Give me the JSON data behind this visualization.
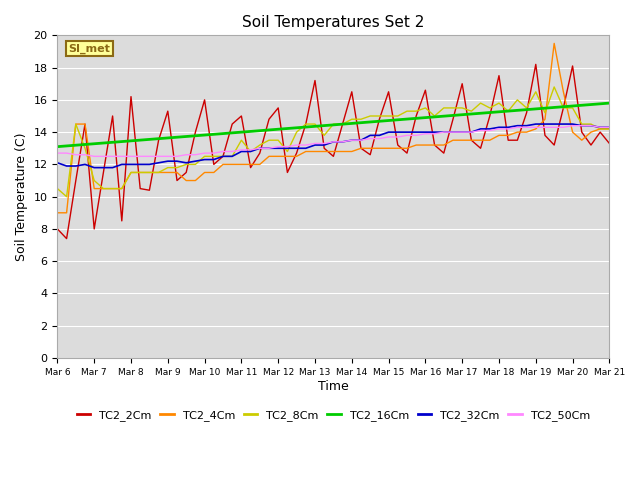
{
  "title": "Soil Temperatures Set 2",
  "xlabel": "Time",
  "ylabel": "Soil Temperature (C)",
  "ylim": [
    0,
    20
  ],
  "xlim": [
    0,
    360
  ],
  "bg_color": "#dcdcdc",
  "annotation_text": "SI_met",
  "annotation_bg": "#ffff99",
  "annotation_border": "#8b6914",
  "series": {
    "TC2_2Cm": {
      "color": "#cc0000",
      "linewidth": 1.0,
      "x": [
        0,
        6,
        12,
        18,
        24,
        30,
        36,
        42,
        48,
        54,
        60,
        66,
        72,
        78,
        84,
        90,
        96,
        102,
        108,
        114,
        120,
        126,
        132,
        138,
        144,
        150,
        156,
        162,
        168,
        174,
        180,
        186,
        192,
        198,
        204,
        210,
        216,
        222,
        228,
        234,
        240,
        246,
        252,
        258,
        264,
        270,
        276,
        282,
        288,
        294,
        300,
        306,
        312,
        318,
        324,
        330,
        336,
        342,
        348,
        354,
        360
      ],
      "y": [
        8.0,
        7.4,
        11.0,
        14.5,
        8.0,
        11.5,
        15.0,
        8.5,
        16.2,
        10.5,
        10.4,
        13.5,
        15.3,
        11.0,
        11.5,
        14.0,
        16.0,
        12.0,
        12.5,
        14.5,
        15.0,
        11.8,
        12.7,
        14.8,
        15.5,
        11.5,
        12.7,
        14.5,
        17.2,
        13.0,
        12.5,
        14.5,
        16.5,
        13.0,
        12.6,
        14.8,
        16.5,
        13.2,
        12.7,
        15.0,
        16.6,
        13.2,
        12.7,
        14.8,
        17.0,
        13.5,
        13.0,
        15.0,
        17.5,
        13.5,
        13.5,
        15.2,
        18.2,
        13.8,
        13.2,
        15.5,
        18.1,
        14.0,
        13.2,
        14.0,
        13.3
      ]
    },
    "TC2_4Cm": {
      "color": "#ff8800",
      "linewidth": 1.0,
      "x": [
        0,
        6,
        12,
        18,
        24,
        30,
        36,
        42,
        48,
        54,
        60,
        66,
        72,
        78,
        84,
        90,
        96,
        102,
        108,
        114,
        120,
        126,
        132,
        138,
        144,
        150,
        156,
        162,
        168,
        174,
        180,
        186,
        192,
        198,
        204,
        210,
        216,
        222,
        228,
        234,
        240,
        246,
        252,
        258,
        264,
        270,
        276,
        282,
        288,
        294,
        300,
        306,
        312,
        318,
        324,
        330,
        336,
        342,
        348,
        354,
        360
      ],
      "y": [
        9.0,
        9.0,
        14.5,
        14.5,
        10.5,
        10.5,
        10.5,
        10.5,
        11.5,
        11.5,
        11.5,
        11.5,
        11.5,
        11.5,
        11.0,
        11.0,
        11.5,
        11.5,
        12.0,
        12.0,
        12.0,
        12.0,
        12.0,
        12.5,
        12.5,
        12.5,
        12.5,
        12.8,
        12.8,
        12.8,
        12.8,
        12.8,
        12.8,
        13.0,
        13.0,
        13.0,
        13.0,
        13.0,
        13.0,
        13.2,
        13.2,
        13.2,
        13.2,
        13.5,
        13.5,
        13.5,
        13.5,
        13.5,
        13.8,
        13.8,
        14.0,
        14.0,
        14.2,
        14.8,
        19.5,
        16.5,
        14.0,
        13.5,
        14.0,
        14.2,
        14.2
      ]
    },
    "TC2_8Cm": {
      "color": "#cccc00",
      "linewidth": 1.0,
      "x": [
        0,
        6,
        12,
        18,
        24,
        30,
        36,
        42,
        48,
        54,
        60,
        66,
        72,
        78,
        84,
        90,
        96,
        102,
        108,
        114,
        120,
        126,
        132,
        138,
        144,
        150,
        156,
        162,
        168,
        174,
        180,
        186,
        192,
        198,
        204,
        210,
        216,
        222,
        228,
        234,
        240,
        246,
        252,
        258,
        264,
        270,
        276,
        282,
        288,
        294,
        300,
        306,
        312,
        318,
        324,
        330,
        336,
        342,
        348,
        354,
        360
      ],
      "y": [
        10.5,
        10.0,
        14.5,
        13.0,
        11.0,
        10.5,
        10.5,
        10.5,
        11.5,
        11.5,
        11.5,
        11.5,
        11.8,
        11.8,
        12.0,
        12.0,
        12.5,
        12.5,
        12.5,
        12.5,
        13.5,
        12.8,
        13.2,
        13.5,
        13.5,
        12.8,
        14.0,
        14.5,
        14.5,
        13.8,
        14.5,
        14.5,
        14.8,
        14.8,
        15.0,
        15.0,
        15.0,
        15.0,
        15.3,
        15.3,
        15.5,
        15.0,
        15.5,
        15.5,
        15.5,
        15.3,
        15.8,
        15.5,
        15.8,
        15.3,
        16.0,
        15.5,
        16.5,
        15.2,
        16.8,
        15.5,
        15.5,
        14.5,
        14.5,
        14.2,
        14.2
      ]
    },
    "TC2_16Cm": {
      "color": "#00cc00",
      "linewidth": 2.0,
      "x": [
        0,
        360
      ],
      "y": [
        13.1,
        15.8
      ]
    },
    "TC2_32Cm": {
      "color": "#0000cc",
      "linewidth": 1.2,
      "x": [
        0,
        6,
        12,
        18,
        24,
        30,
        36,
        42,
        48,
        54,
        60,
        66,
        72,
        78,
        84,
        90,
        96,
        102,
        108,
        114,
        120,
        126,
        132,
        138,
        144,
        150,
        156,
        162,
        168,
        174,
        180,
        186,
        192,
        198,
        204,
        210,
        216,
        222,
        228,
        234,
        240,
        246,
        252,
        258,
        264,
        270,
        276,
        282,
        288,
        294,
        300,
        306,
        312,
        318,
        324,
        330,
        336,
        342,
        348,
        354,
        360
      ],
      "y": [
        12.1,
        11.9,
        11.9,
        12.0,
        11.8,
        11.8,
        11.8,
        12.0,
        12.0,
        12.0,
        12.0,
        12.1,
        12.2,
        12.2,
        12.1,
        12.2,
        12.3,
        12.3,
        12.5,
        12.5,
        12.8,
        12.8,
        13.0,
        13.0,
        13.0,
        13.0,
        13.0,
        13.0,
        13.2,
        13.2,
        13.4,
        13.4,
        13.5,
        13.5,
        13.8,
        13.8,
        14.0,
        14.0,
        14.0,
        14.0,
        14.0,
        14.0,
        14.0,
        14.0,
        14.0,
        14.0,
        14.2,
        14.2,
        14.3,
        14.3,
        14.4,
        14.4,
        14.5,
        14.5,
        14.5,
        14.5,
        14.5,
        14.4,
        14.4,
        14.3,
        14.3
      ]
    },
    "TC2_50Cm": {
      "color": "#ff88ff",
      "linewidth": 1.0,
      "x": [
        0,
        6,
        12,
        18,
        24,
        30,
        36,
        42,
        48,
        54,
        60,
        66,
        72,
        78,
        84,
        90,
        96,
        102,
        108,
        114,
        120,
        126,
        132,
        138,
        144,
        150,
        156,
        162,
        168,
        174,
        180,
        186,
        192,
        198,
        204,
        210,
        216,
        222,
        228,
        234,
        240,
        246,
        252,
        258,
        264,
        270,
        276,
        282,
        288,
        294,
        300,
        306,
        312,
        318,
        324,
        330,
        336,
        342,
        348,
        354,
        360
      ],
      "y": [
        12.7,
        12.7,
        12.6,
        12.6,
        12.5,
        12.5,
        12.5,
        12.5,
        12.5,
        12.5,
        12.5,
        12.5,
        12.5,
        12.5,
        12.6,
        12.6,
        12.7,
        12.7,
        12.8,
        12.8,
        12.9,
        12.9,
        13.0,
        13.0,
        13.1,
        13.1,
        13.2,
        13.2,
        13.3,
        13.3,
        13.4,
        13.4,
        13.5,
        13.5,
        13.6,
        13.6,
        13.7,
        13.7,
        13.8,
        13.8,
        13.9,
        13.9,
        14.0,
        14.0,
        14.0,
        14.0,
        14.1,
        14.1,
        14.2,
        14.2,
        14.3,
        14.3,
        14.3,
        14.3,
        14.3,
        14.3,
        14.4,
        14.4,
        14.4,
        14.3,
        14.3
      ]
    }
  },
  "xtick_positions": [
    0,
    24,
    48,
    72,
    96,
    120,
    144,
    168,
    192,
    216,
    240,
    264,
    288,
    312,
    336,
    360
  ],
  "xtick_labels": [
    "Mar 6",
    "Mar 7",
    "Mar 8",
    "Mar 9",
    "Mar 10",
    "Mar 11",
    "Mar 12",
    "Mar 13",
    "Mar 14",
    "Mar 15",
    "Mar 16",
    "Mar 17",
    "Mar 18",
    "Mar 19",
    "Mar 20",
    "Mar 21"
  ],
  "ytick_positions": [
    0,
    2,
    4,
    6,
    8,
    10,
    12,
    14,
    16,
    18,
    20
  ],
  "grid_color": "#ffffff",
  "legend_order": [
    "TC2_2Cm",
    "TC2_4Cm",
    "TC2_8Cm",
    "TC2_16Cm",
    "TC2_32Cm",
    "TC2_50Cm"
  ]
}
